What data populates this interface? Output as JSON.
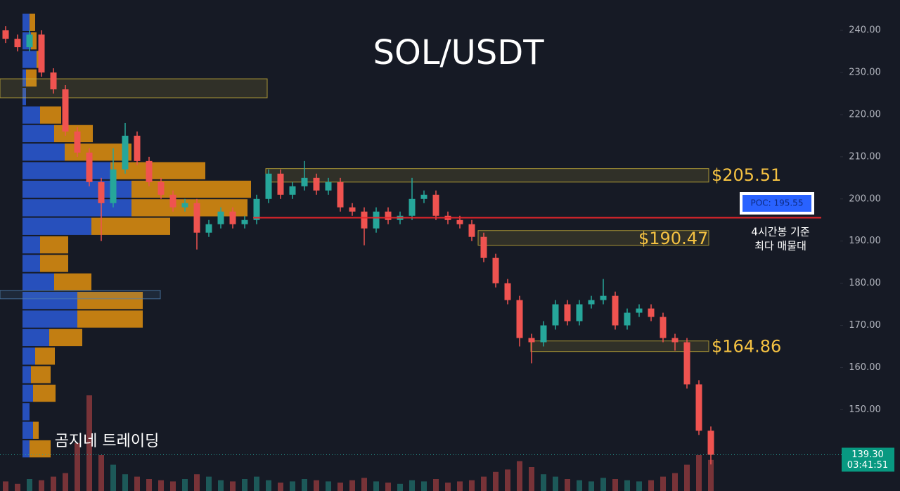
{
  "chart_data": {
    "type": "candlestick",
    "title": "SOL/USDT",
    "watermark": "곰지네 트레이딩",
    "open": [
      240,
      238,
      236,
      239,
      230,
      226,
      216,
      211,
      204,
      199,
      207,
      215,
      209,
      204,
      201,
      198,
      199,
      192,
      194,
      197,
      194,
      195,
      200,
      206,
      201,
      203,
      205,
      202,
      204,
      198,
      197,
      193,
      197,
      195,
      196,
      200,
      201,
      196,
      195,
      194,
      191,
      186,
      180,
      176,
      167,
      166,
      170,
      175,
      171,
      175,
      176,
      177,
      170,
      173,
      174,
      172,
      167,
      166,
      156,
      145
    ],
    "high": [
      241,
      239,
      240,
      240,
      231,
      227,
      217,
      212,
      205,
      212,
      218,
      216,
      210,
      205,
      202,
      200,
      200,
      195,
      198,
      198,
      196,
      201,
      207,
      207,
      204,
      209,
      206,
      205,
      205,
      199,
      198,
      198,
      198,
      197,
      205,
      202,
      202,
      197,
      196,
      195,
      192,
      187,
      181,
      177,
      168,
      171,
      176,
      176,
      176,
      177,
      181,
      178,
      174,
      175,
      175,
      173,
      168,
      167,
      157,
      146
    ],
    "low": [
      237,
      235,
      235,
      229,
      225,
      215,
      210,
      203,
      190,
      198,
      206,
      208,
      203,
      200,
      197,
      197,
      188,
      191,
      193,
      193,
      193,
      194,
      199,
      200,
      200,
      202,
      201,
      201,
      197,
      196,
      189,
      192,
      194,
      194,
      195,
      199,
      195,
      194,
      193,
      190,
      185,
      179,
      175,
      165,
      161,
      165,
      169,
      170,
      170,
      174,
      175,
      169,
      169,
      172,
      171,
      166,
      164,
      155,
      144,
      137
    ],
    "close": [
      238,
      236,
      239,
      230,
      226,
      216,
      211,
      204,
      199,
      207,
      215,
      209,
      204,
      201,
      198,
      199,
      192,
      194,
      197,
      194,
      195,
      200,
      206,
      201,
      203,
      205,
      202,
      204,
      198,
      197,
      193,
      197,
      195,
      196,
      200,
      201,
      196,
      195,
      194,
      191,
      186,
      180,
      176,
      167,
      166,
      170,
      175,
      171,
      175,
      176,
      177,
      170,
      173,
      174,
      172,
      167,
      166,
      156,
      145,
      139.3
    ],
    "volume": [
      8,
      6,
      10,
      9,
      12,
      15,
      40,
      80,
      30,
      22,
      14,
      12,
      10,
      9,
      8,
      10,
      14,
      12,
      9,
      8,
      10,
      12,
      9,
      7,
      8,
      10,
      9,
      8,
      7,
      9,
      11,
      8,
      7,
      6,
      9,
      8,
      10,
      7,
      8,
      9,
      12,
      16,
      18,
      25,
      20,
      14,
      12,
      10,
      9,
      8,
      11,
      10,
      9,
      8,
      9,
      12,
      15,
      22,
      30,
      26
    ],
    "colors": {
      "up": "#26a69a",
      "down": "#ef5350",
      "buy": "#2a5bd7",
      "sell": "#e0900f",
      "poc": "#e8252a"
    },
    "profile": {
      "bins": [
        138.5,
        142.9,
        147.3,
        151.7,
        156.1,
        160.5,
        164.9,
        169.3,
        173.7,
        178.1,
        182.5,
        186.9,
        191.3,
        195.7,
        200.1,
        204.5,
        208.9,
        213.3,
        217.7,
        222.1,
        226.5,
        230.9,
        235.3,
        239.7,
        244.1
      ],
      "buy": [
        10,
        15,
        10,
        15,
        12,
        18,
        38,
        78,
        78,
        45,
        25,
        25,
        98,
        155,
        155,
        125,
        60,
        45,
        25,
        5,
        5,
        20,
        12,
        10
      ],
      "sell": [
        30,
        8,
        0,
        32,
        28,
        28,
        47,
        93,
        93,
        53,
        40,
        40,
        112,
        165,
        170,
        135,
        95,
        55,
        30,
        0,
        15,
        10,
        8,
        8
      ]
    },
    "zones": [
      {
        "low": 224,
        "high": 228.5,
        "color": "#c9b03a"
      },
      {
        "low": 204,
        "high": 207.2,
        "color": "#c9b03a"
      },
      {
        "low": 189,
        "high": 192.5,
        "color": "#c9b03a"
      },
      {
        "low": 176.3,
        "high": 178.3,
        "color": "#4f7fb0"
      },
      {
        "low": 163.8,
        "high": 166.3,
        "color": "#c9b03a"
      }
    ],
    "annotations": [
      {
        "value": 205.51,
        "label": "$205.51"
      },
      {
        "value": 190.47,
        "label": "$190.47"
      },
      {
        "value": 164.86,
        "label": "$164.86"
      }
    ],
    "poc": {
      "value": 195.55,
      "label": "POC: 195.55"
    },
    "poc_note": [
      "4시간봉 기준",
      "최다 매물대"
    ],
    "last_price": {
      "value": 139.3,
      "label": "139.30"
    },
    "countdown": "03:41:51",
    "ylim": [
      130.7,
      247.2
    ],
    "yticks": [
      {
        "value": 240,
        "label": "240.00"
      },
      {
        "value": 230,
        "label": "230.00"
      },
      {
        "value": 220,
        "label": "220.00"
      },
      {
        "value": 210,
        "label": "210.00"
      },
      {
        "value": 200,
        "label": "200.00"
      },
      {
        "value": 190,
        "label": "190.00"
      },
      {
        "value": 180,
        "label": "180.00"
      },
      {
        "value": 170,
        "label": "170.00"
      },
      {
        "value": 160,
        "label": "160.00"
      },
      {
        "value": 150,
        "label": "150.00"
      }
    ]
  }
}
